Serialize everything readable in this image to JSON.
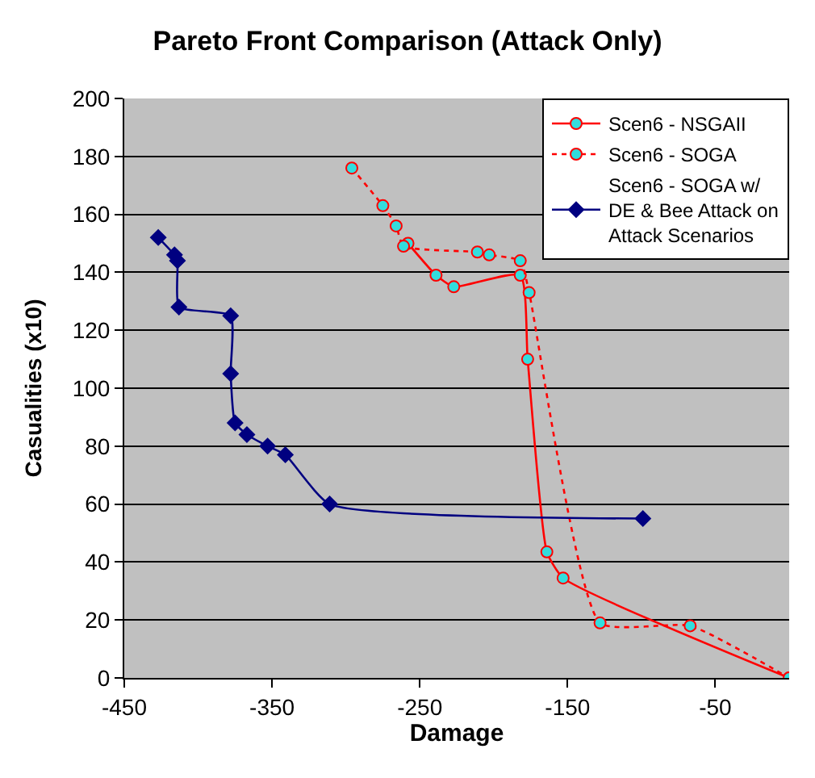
{
  "chart_data": {
    "type": "line",
    "title": "Pareto Front Comparison (Attack Only)",
    "xlabel": "Damage",
    "ylabel": "Casualities (x10)",
    "series": [
      {
        "name": "Scen6 - NSGAII",
        "color": "#ff0000",
        "marker": "circle",
        "line_style": "solid",
        "x": [
          -258,
          -239,
          -227,
          -182,
          -177,
          -164,
          -153,
          0
        ],
        "values": [
          150,
          139,
          135,
          139,
          110,
          43.5,
          34.5,
          0
        ]
      },
      {
        "name": "Scen6 - SOGA",
        "color": "#ff0000",
        "marker": "circle",
        "line_style": "dotted",
        "x": [
          -296,
          -275,
          -266,
          -261,
          -211,
          -203,
          -182,
          -176,
          -128,
          -67,
          0
        ],
        "values": [
          176,
          163,
          156,
          149,
          147,
          146,
          144,
          133,
          19,
          18,
          0
        ]
      },
      {
        "name": "Scen6 - SOGA w/\nDE & Bee Attack on\nAttack Scenarios",
        "color": "#000080",
        "marker": "diamond",
        "line_style": "solid",
        "x": [
          -427,
          -416,
          -414,
          -413,
          -378,
          -378,
          -375,
          -367,
          -353,
          -341,
          -311,
          -99
        ],
        "values": [
          152,
          146,
          144,
          128,
          125,
          105,
          88,
          84,
          80,
          77,
          60,
          55
        ]
      }
    ],
    "xlim": [
      -450,
      0
    ],
    "xticks": [
      -450,
      -350,
      -250,
      -150,
      -50
    ],
    "ylim": [
      0,
      200
    ],
    "yticks": [
      0,
      20,
      40,
      60,
      80,
      100,
      120,
      140,
      160,
      180,
      200
    ],
    "grid": "y",
    "legend": "top right"
  }
}
